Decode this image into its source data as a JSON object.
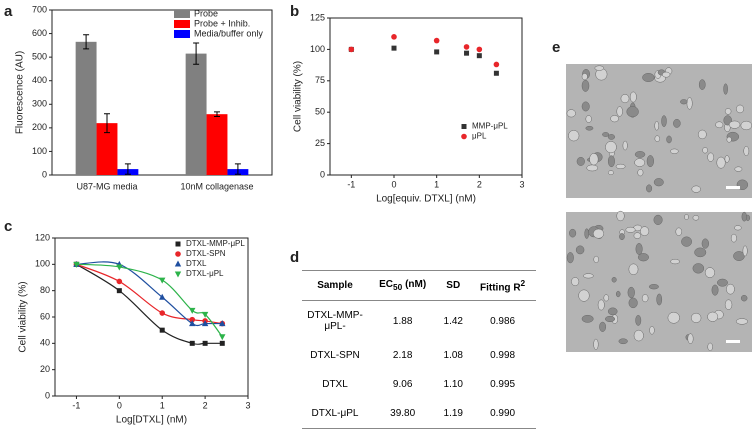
{
  "panel_labels": [
    "a",
    "b",
    "c",
    "d",
    "e"
  ],
  "chart_data": [
    {
      "type": "bar",
      "categories": [
        "U87-MG media",
        "10nM collagenase"
      ],
      "y_label": "Fluorescence (AU)",
      "ylim": [
        0,
        700
      ],
      "yticks": [
        0,
        100,
        200,
        300,
        400,
        500,
        600,
        700
      ],
      "legend": "top-right",
      "series": [
        {
          "name": "Probe",
          "color": "#808080",
          "values": [
            565,
            515
          ],
          "errors": [
            30,
            45
          ]
        },
        {
          "name": "Probe + Inhib.",
          "color": "#ff0000",
          "values": [
            220,
            258
          ],
          "errors": [
            40,
            10
          ]
        },
        {
          "name": "Media/buffer only",
          "color": "#0000ff",
          "values": [
            25,
            25
          ],
          "errors": [
            22,
            22
          ]
        }
      ]
    },
    {
      "type": "scatter",
      "x_label": "Log[equiv. DTXL] (nM)",
      "y_label": "Cell viability (%)",
      "xlim": [
        -1.5,
        3
      ],
      "xticks": [
        -1,
        0,
        1,
        2,
        3
      ],
      "ylim": [
        0,
        125
      ],
      "yticks": [
        0,
        25,
        50,
        75,
        100,
        125
      ],
      "legend": "right",
      "series": [
        {
          "name": "MMP-μPL",
          "color": "#333333",
          "marker": "square",
          "x": [
            -1,
            0,
            1,
            1.7,
            2,
            2.4
          ],
          "values": [
            100,
            101,
            98,
            97,
            95,
            81
          ]
        },
        {
          "name": "μPL",
          "color": "#e8262a",
          "marker": "circle",
          "x": [
            -1,
            0,
            1,
            1.7,
            2,
            2.4
          ],
          "values": [
            100,
            110,
            107,
            102,
            100,
            88
          ]
        }
      ]
    },
    {
      "type": "scatter",
      "x_label": "Log[DTXL] (nM)",
      "y_label": "Cell viability (%)",
      "fit_curve": true,
      "xlim": [
        -1.5,
        3
      ],
      "xticks": [
        -1,
        0,
        1,
        2,
        3
      ],
      "ylim": [
        0,
        120
      ],
      "yticks": [
        0,
        20,
        40,
        60,
        80,
        100,
        120
      ],
      "legend": "top-right",
      "series": [
        {
          "name": "DTXL-MMP-μPL",
          "color": "#222222",
          "marker": "square",
          "x": [
            -1,
            0,
            1,
            1.7,
            2,
            2.4
          ],
          "values": [
            100,
            80,
            50,
            40,
            40,
            40
          ]
        },
        {
          "name": "DTXL-SPN",
          "color": "#e8262a",
          "marker": "circle",
          "x": [
            -1,
            0,
            1,
            1.7,
            2,
            2.4
          ],
          "values": [
            100,
            87,
            63,
            58,
            57,
            55
          ]
        },
        {
          "name": "DTXL",
          "color": "#1f4fa0",
          "marker": "triangle",
          "x": [
            -1,
            0,
            1,
            1.7,
            2,
            2.4
          ],
          "values": [
            100,
            100,
            75,
            55,
            55,
            55
          ]
        },
        {
          "name": "DTXL-μPL",
          "color": "#2db34a",
          "marker": "triangle-down",
          "x": [
            -1,
            0,
            1,
            1.7,
            2,
            2.4
          ],
          "values": [
            100,
            98,
            88,
            65,
            62,
            45
          ]
        }
      ]
    }
  ],
  "table": {
    "header": [
      "Sample",
      [
        "EC",
        "50",
        " (nM)"
      ],
      "SD",
      [
        "Fitting R",
        "2"
      ]
    ],
    "rows": [
      [
        "DTXL-MMP-μPL-",
        "1.88",
        "1.42",
        "0.986"
      ],
      [
        "DTXL-SPN",
        "2.18",
        "1.08",
        "0.998"
      ],
      [
        "DTXL",
        "9.06",
        "1.10",
        "0.995"
      ],
      [
        "DTXL-μPL",
        "39.80",
        "1.19",
        "0.990"
      ]
    ]
  }
}
